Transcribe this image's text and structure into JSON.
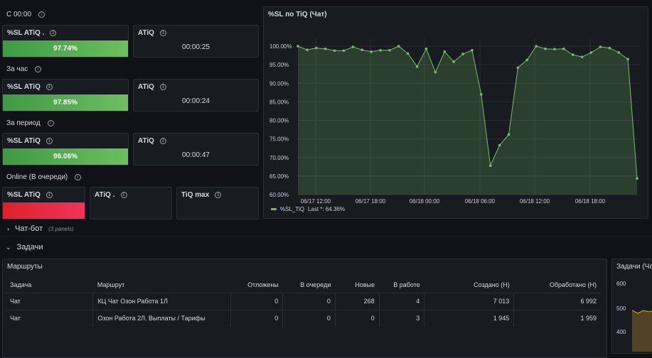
{
  "sections": {
    "now": "С 00:00",
    "hour": "За час",
    "period": "За период",
    "online": "Online (В очереди)"
  },
  "stats": {
    "now_sl": {
      "title": "%SL ATiQ .",
      "value": "97.74%",
      "fill": 0.9774
    },
    "now_atiq": {
      "title": "ATiQ",
      "value": "00:00:25"
    },
    "hour_sl": {
      "title": "%SL ATiQ",
      "value": "97.85%",
      "fill": 0.9785
    },
    "hour_atiq": {
      "title": "ATiQ",
      "value": "00:00:24"
    },
    "period_sl": {
      "title": "%SL ATiQ",
      "value": "96.06%",
      "fill": 0.9606
    },
    "period_atiq": {
      "title": "ATiQ",
      "value": "00:00:47"
    },
    "online_sl": {
      "title": "%SL ATiQ",
      "value": ""
    },
    "online_atiq": {
      "title": "ATiQ .",
      "value": ""
    },
    "online_tiq": {
      "title": "TiQ max",
      "value": ""
    }
  },
  "timeseries": {
    "title": "%SL по TiQ (Чат)",
    "legend": {
      "series": "%SL_TiQ",
      "last_label": "Last *: 64.36%"
    }
  },
  "chart_data": {
    "type": "area",
    "title": "%SL по TiQ (Чат)",
    "y_ticks": [
      "100.00%",
      "95.00%",
      "90.00%",
      "85.00%",
      "80.00%",
      "75.00%",
      "70.00%",
      "65.00%",
      "60.00%"
    ],
    "x_ticks": [
      "06/17 12:00",
      "06/17 18:00",
      "06/18 00:00",
      "06/18 06:00",
      "06/18 12:00",
      "06/18 18:00"
    ],
    "ylim": [
      60,
      100
    ],
    "series": [
      {
        "name": "%SL_TiQ",
        "color": "#73bf69",
        "values": [
          100,
          99,
          99.5,
          99.3,
          98.8,
          98.8,
          99.8,
          99,
          98.5,
          98.9,
          98.9,
          100,
          98,
          94.5,
          99.3,
          93,
          98.5,
          95.8,
          97.9,
          98.9,
          87,
          67.8,
          73.3,
          76.2,
          94.2,
          96.3,
          100,
          99.3,
          99.2,
          99.3,
          97.7,
          97.1,
          98.3,
          99.8,
          99.5,
          98.3,
          96.5,
          64.36
        ]
      }
    ]
  },
  "rows": {
    "chatbot": {
      "title": "Чат-бот",
      "sub": "(3 panels)"
    },
    "tasks": {
      "title": "Задачи"
    }
  },
  "routes": {
    "title": "Маршруты",
    "columns": [
      "Задача",
      "Маршрут",
      "Отложены",
      "В очереди",
      "Новые",
      "В работе",
      "Создано (Н)",
      "Обработано (Н)"
    ],
    "rows": [
      [
        "Чат",
        "КЦ Чат Озон Работа 1Л",
        "0",
        "0",
        "268",
        "4",
        "7 013",
        "6 992"
      ],
      [
        "Чат",
        "Озон Работа 2Л. Выплаты / Тарифы",
        "0",
        "0",
        "0",
        "3",
        "1 945",
        "1 959"
      ]
    ]
  },
  "tasks_panel": {
    "title": "Задачи (Ча",
    "y_ticks": [
      "600",
      "500",
      "400"
    ]
  },
  "colors": {
    "green": "#73bf69",
    "red": "#f2304a",
    "bg": "#111217",
    "panel": "#181b1f"
  }
}
